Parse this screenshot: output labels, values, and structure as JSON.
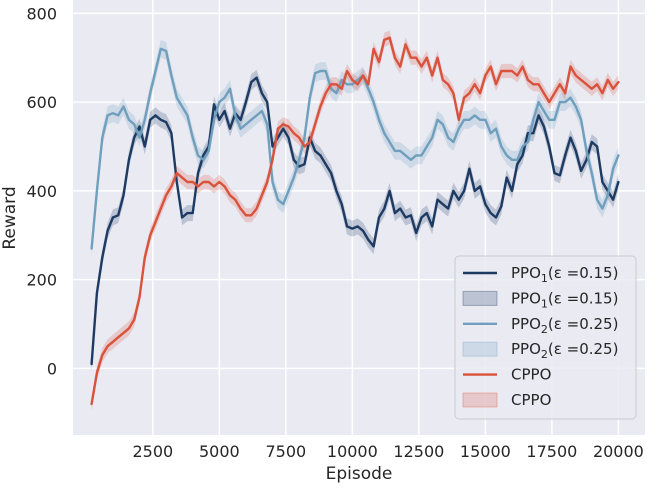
{
  "chart_data": {
    "type": "line",
    "title": "",
    "xlabel": "Episode",
    "ylabel": "Reward",
    "xlim": [
      -500,
      21000
    ],
    "ylim": [
      -150,
      830
    ],
    "xticks": [
      2500,
      5000,
      7500,
      10000,
      12500,
      15000,
      17500,
      20000
    ],
    "xtick_labels": [
      "2500",
      "5000",
      "7500",
      "10000",
      "12500",
      "15000",
      "17500",
      "20000"
    ],
    "yticks": [
      0,
      200,
      400,
      600,
      800
    ],
    "ytick_labels": [
      "0",
      "200",
      "400",
      "600",
      "800"
    ],
    "grid": true,
    "background": "#eaeaf2",
    "legend_position": "lower-right",
    "legend": [
      {
        "label": "PPO",
        "sub": "1",
        "suffix": "(ε =0.15)",
        "kind": "line",
        "color": "#1d3a63"
      },
      {
        "label": "PPO",
        "sub": "1",
        "suffix": "(ε =0.15)",
        "kind": "band",
        "color": "#1d3a63"
      },
      {
        "label": "PPO",
        "sub": "2",
        "suffix": "(ε =0.25)",
        "kind": "line",
        "color": "#6f9fbd"
      },
      {
        "label": "PPO",
        "sub": "2",
        "suffix": "(ε =0.25)",
        "kind": "band",
        "color": "#6f9fbd"
      },
      {
        "label": "CPPO",
        "sub": "",
        "suffix": "",
        "kind": "line",
        "color": "#d9523c"
      },
      {
        "label": "CPPO",
        "sub": "",
        "suffix": "",
        "kind": "band",
        "color": "#d9523c"
      }
    ],
    "series": [
      {
        "name": "PPO1(ε =0.15)",
        "color": "#1d3a63",
        "band_width": 18,
        "points": [
          [
            200,
            10
          ],
          [
            400,
            170
          ],
          [
            600,
            250
          ],
          [
            800,
            310
          ],
          [
            1000,
            340
          ],
          [
            1200,
            345
          ],
          [
            1400,
            390
          ],
          [
            1600,
            470
          ],
          [
            1800,
            520
          ],
          [
            2000,
            545
          ],
          [
            2200,
            500
          ],
          [
            2400,
            560
          ],
          [
            2600,
            570
          ],
          [
            2800,
            560
          ],
          [
            3000,
            555
          ],
          [
            3200,
            530
          ],
          [
            3400,
            420
          ],
          [
            3600,
            340
          ],
          [
            3800,
            350
          ],
          [
            4000,
            350
          ],
          [
            4200,
            440
          ],
          [
            4400,
            480
          ],
          [
            4600,
            500
          ],
          [
            4800,
            595
          ],
          [
            5000,
            560
          ],
          [
            5200,
            580
          ],
          [
            5400,
            540
          ],
          [
            5600,
            575
          ],
          [
            5800,
            560
          ],
          [
            6000,
            600
          ],
          [
            6200,
            645
          ],
          [
            6400,
            655
          ],
          [
            6600,
            620
          ],
          [
            6800,
            600
          ],
          [
            7000,
            500
          ],
          [
            7200,
            520
          ],
          [
            7400,
            540
          ],
          [
            7600,
            520
          ],
          [
            7800,
            470
          ],
          [
            8000,
            455
          ],
          [
            8200,
            460
          ],
          [
            8400,
            520
          ],
          [
            8600,
            490
          ],
          [
            8800,
            480
          ],
          [
            9000,
            460
          ],
          [
            9200,
            440
          ],
          [
            9400,
            400
          ],
          [
            9600,
            370
          ],
          [
            9800,
            320
          ],
          [
            10000,
            315
          ],
          [
            10200,
            320
          ],
          [
            10400,
            310
          ],
          [
            10600,
            290
          ],
          [
            10800,
            275
          ],
          [
            11000,
            340
          ],
          [
            11200,
            360
          ],
          [
            11400,
            400
          ],
          [
            11600,
            350
          ],
          [
            11800,
            360
          ],
          [
            12000,
            340
          ],
          [
            12200,
            345
          ],
          [
            12400,
            305
          ],
          [
            12600,
            340
          ],
          [
            12800,
            350
          ],
          [
            13000,
            320
          ],
          [
            13200,
            380
          ],
          [
            13400,
            370
          ],
          [
            13600,
            360
          ],
          [
            13800,
            400
          ],
          [
            14000,
            380
          ],
          [
            14200,
            400
          ],
          [
            14400,
            450
          ],
          [
            14600,
            400
          ],
          [
            14800,
            410
          ],
          [
            15000,
            370
          ],
          [
            15200,
            350
          ],
          [
            15400,
            340
          ],
          [
            15600,
            365
          ],
          [
            15800,
            430
          ],
          [
            16000,
            400
          ],
          [
            16200,
            460
          ],
          [
            16400,
            480
          ],
          [
            16600,
            530
          ],
          [
            16800,
            530
          ],
          [
            17000,
            570
          ],
          [
            17200,
            545
          ],
          [
            17400,
            500
          ],
          [
            17600,
            440
          ],
          [
            17800,
            435
          ],
          [
            18000,
            480
          ],
          [
            18200,
            520
          ],
          [
            18400,
            490
          ],
          [
            18600,
            445
          ],
          [
            18800,
            470
          ],
          [
            19000,
            510
          ],
          [
            19200,
            500
          ],
          [
            19400,
            420
          ],
          [
            19600,
            400
          ],
          [
            19800,
            380
          ],
          [
            20000,
            420
          ]
        ]
      },
      {
        "name": "PPO2(ε =0.25)",
        "color": "#6f9fbd",
        "band_width": 20,
        "points": [
          [
            200,
            270
          ],
          [
            400,
            400
          ],
          [
            600,
            520
          ],
          [
            800,
            570
          ],
          [
            1000,
            575
          ],
          [
            1200,
            570
          ],
          [
            1400,
            590
          ],
          [
            1600,
            560
          ],
          [
            1800,
            550
          ],
          [
            2000,
            520
          ],
          [
            2200,
            560
          ],
          [
            2400,
            620
          ],
          [
            2600,
            670
          ],
          [
            2800,
            720
          ],
          [
            3000,
            715
          ],
          [
            3200,
            660
          ],
          [
            3400,
            610
          ],
          [
            3600,
            590
          ],
          [
            3800,
            570
          ],
          [
            4000,
            520
          ],
          [
            4200,
            480
          ],
          [
            4400,
            470
          ],
          [
            4600,
            490
          ],
          [
            4800,
            560
          ],
          [
            5000,
            600
          ],
          [
            5200,
            610
          ],
          [
            5400,
            630
          ],
          [
            5600,
            570
          ],
          [
            5800,
            540
          ],
          [
            6000,
            550
          ],
          [
            6200,
            560
          ],
          [
            6400,
            570
          ],
          [
            6600,
            580
          ],
          [
            6800,
            550
          ],
          [
            7000,
            420
          ],
          [
            7200,
            380
          ],
          [
            7400,
            370
          ],
          [
            7600,
            400
          ],
          [
            7800,
            430
          ],
          [
            8000,
            470
          ],
          [
            8200,
            520
          ],
          [
            8400,
            610
          ],
          [
            8600,
            665
          ],
          [
            8800,
            670
          ],
          [
            9000,
            670
          ],
          [
            9200,
            630
          ],
          [
            9400,
            620
          ],
          [
            9600,
            650
          ],
          [
            9800,
            640
          ],
          [
            10000,
            640
          ],
          [
            10200,
            650
          ],
          [
            10400,
            660
          ],
          [
            10600,
            630
          ],
          [
            10800,
            600
          ],
          [
            11000,
            560
          ],
          [
            11200,
            530
          ],
          [
            11400,
            510
          ],
          [
            11600,
            490
          ],
          [
            11800,
            490
          ],
          [
            12000,
            480
          ],
          [
            12200,
            470
          ],
          [
            12400,
            480
          ],
          [
            12600,
            480
          ],
          [
            12800,
            500
          ],
          [
            13000,
            520
          ],
          [
            13200,
            560
          ],
          [
            13400,
            550
          ],
          [
            13600,
            520
          ],
          [
            13800,
            510
          ],
          [
            14000,
            540
          ],
          [
            14200,
            560
          ],
          [
            14400,
            560
          ],
          [
            14600,
            570
          ],
          [
            14800,
            560
          ],
          [
            15000,
            560
          ],
          [
            15200,
            530
          ],
          [
            15400,
            540
          ],
          [
            15600,
            500
          ],
          [
            15800,
            480
          ],
          [
            16000,
            470
          ],
          [
            16200,
            470
          ],
          [
            16400,
            500
          ],
          [
            16600,
            510
          ],
          [
            16800,
            560
          ],
          [
            17000,
            600
          ],
          [
            17200,
            580
          ],
          [
            17400,
            560
          ],
          [
            17600,
            560
          ],
          [
            17800,
            600
          ],
          [
            18000,
            600
          ],
          [
            18200,
            610
          ],
          [
            18400,
            590
          ],
          [
            18600,
            560
          ],
          [
            18800,
            490
          ],
          [
            19000,
            440
          ],
          [
            19200,
            380
          ],
          [
            19400,
            360
          ],
          [
            19600,
            390
          ],
          [
            19800,
            450
          ],
          [
            20000,
            480
          ]
        ]
      },
      {
        "name": "CPPO",
        "color": "#d9523c",
        "band_width": 16,
        "points": [
          [
            200,
            -80
          ],
          [
            400,
            -10
          ],
          [
            600,
            30
          ],
          [
            800,
            50
          ],
          [
            1000,
            60
          ],
          [
            1200,
            70
          ],
          [
            1400,
            80
          ],
          [
            1600,
            90
          ],
          [
            1800,
            110
          ],
          [
            2000,
            160
          ],
          [
            2200,
            250
          ],
          [
            2400,
            300
          ],
          [
            2600,
            330
          ],
          [
            2800,
            360
          ],
          [
            3000,
            390
          ],
          [
            3200,
            410
          ],
          [
            3400,
            440
          ],
          [
            3600,
            430
          ],
          [
            3800,
            420
          ],
          [
            4000,
            420
          ],
          [
            4200,
            410
          ],
          [
            4400,
            420
          ],
          [
            4600,
            420
          ],
          [
            4800,
            410
          ],
          [
            5000,
            420
          ],
          [
            5200,
            410
          ],
          [
            5400,
            390
          ],
          [
            5600,
            380
          ],
          [
            5800,
            360
          ],
          [
            6000,
            345
          ],
          [
            6200,
            345
          ],
          [
            6400,
            360
          ],
          [
            6600,
            390
          ],
          [
            6800,
            420
          ],
          [
            7000,
            470
          ],
          [
            7200,
            540
          ],
          [
            7400,
            550
          ],
          [
            7600,
            545
          ],
          [
            7800,
            530
          ],
          [
            8000,
            520
          ],
          [
            8200,
            500
          ],
          [
            8400,
            510
          ],
          [
            8600,
            550
          ],
          [
            8800,
            590
          ],
          [
            9000,
            620
          ],
          [
            9200,
            640
          ],
          [
            9400,
            640
          ],
          [
            9600,
            630
          ],
          [
            9800,
            670
          ],
          [
            10000,
            650
          ],
          [
            10200,
            640
          ],
          [
            10400,
            660
          ],
          [
            10600,
            640
          ],
          [
            10800,
            720
          ],
          [
            11000,
            690
          ],
          [
            11200,
            740
          ],
          [
            11400,
            745
          ],
          [
            11600,
            700
          ],
          [
            11800,
            680
          ],
          [
            12000,
            730
          ],
          [
            12200,
            700
          ],
          [
            12400,
            700
          ],
          [
            12600,
            680
          ],
          [
            12800,
            700
          ],
          [
            13000,
            660
          ],
          [
            13200,
            700
          ],
          [
            13400,
            650
          ],
          [
            13600,
            640
          ],
          [
            13800,
            620
          ],
          [
            14000,
            560
          ],
          [
            14200,
            610
          ],
          [
            14400,
            620
          ],
          [
            14600,
            640
          ],
          [
            14800,
            620
          ],
          [
            15000,
            660
          ],
          [
            15200,
            680
          ],
          [
            15400,
            640
          ],
          [
            15600,
            670
          ],
          [
            15800,
            670
          ],
          [
            16000,
            670
          ],
          [
            16200,
            660
          ],
          [
            16400,
            680
          ],
          [
            16600,
            650
          ],
          [
            16800,
            640
          ],
          [
            17000,
            640
          ],
          [
            17200,
            620
          ],
          [
            17400,
            600
          ],
          [
            17600,
            620
          ],
          [
            17800,
            640
          ],
          [
            18000,
            620
          ],
          [
            18200,
            680
          ],
          [
            18400,
            660
          ],
          [
            18600,
            650
          ],
          [
            18800,
            640
          ],
          [
            19000,
            630
          ],
          [
            19200,
            640
          ],
          [
            19400,
            620
          ],
          [
            19600,
            650
          ],
          [
            19800,
            630
          ],
          [
            20000,
            645
          ]
        ]
      }
    ]
  }
}
